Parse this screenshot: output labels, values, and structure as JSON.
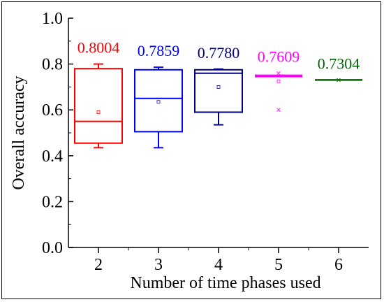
{
  "chart_data": {
    "type": "box",
    "xlabel": "Number of time phases used",
    "ylabel": "Overall accuracy",
    "xlim": [
      1.5,
      6.5
    ],
    "ylim": [
      0.0,
      1.0
    ],
    "x_ticks": [
      "2",
      "3",
      "4",
      "5",
      "6"
    ],
    "y_ticks": [
      "0.0",
      "0.2",
      "0.4",
      "0.6",
      "0.8",
      "1.0"
    ],
    "grid": false,
    "series": [
      {
        "x": 2,
        "color": "#ff0000",
        "label": "0.8004",
        "min": 0.435,
        "q1": 0.455,
        "median": 0.55,
        "q3": 0.78,
        "max": 0.8,
        "mean": 0.59,
        "outliers": []
      },
      {
        "x": 3,
        "color": "#0000ff",
        "label": "0.7859",
        "min": 0.435,
        "q1": 0.505,
        "median": 0.65,
        "q3": 0.775,
        "max": 0.786,
        "mean": 0.635,
        "outliers": []
      },
      {
        "x": 4,
        "color": "#000080",
        "label": "0.7780",
        "min": 0.535,
        "q1": 0.59,
        "median": 0.76,
        "q3": 0.775,
        "max": 0.778,
        "mean": 0.7,
        "outliers": []
      },
      {
        "x": 5,
        "color": "#ff00ff",
        "label": "0.7609",
        "min": 0.745,
        "q1": 0.745,
        "median": 0.748,
        "q3": 0.752,
        "max": 0.755,
        "mean": 0.725,
        "outliers": [
          0.76,
          0.6
        ]
      },
      {
        "x": 6,
        "color": "#006400",
        "label": "0.7304",
        "min": 0.7304,
        "q1": 0.7304,
        "median": 0.7304,
        "q3": 0.7304,
        "max": 0.7304,
        "mean": 0.7304,
        "outliers": [
          0.7304
        ]
      }
    ]
  }
}
